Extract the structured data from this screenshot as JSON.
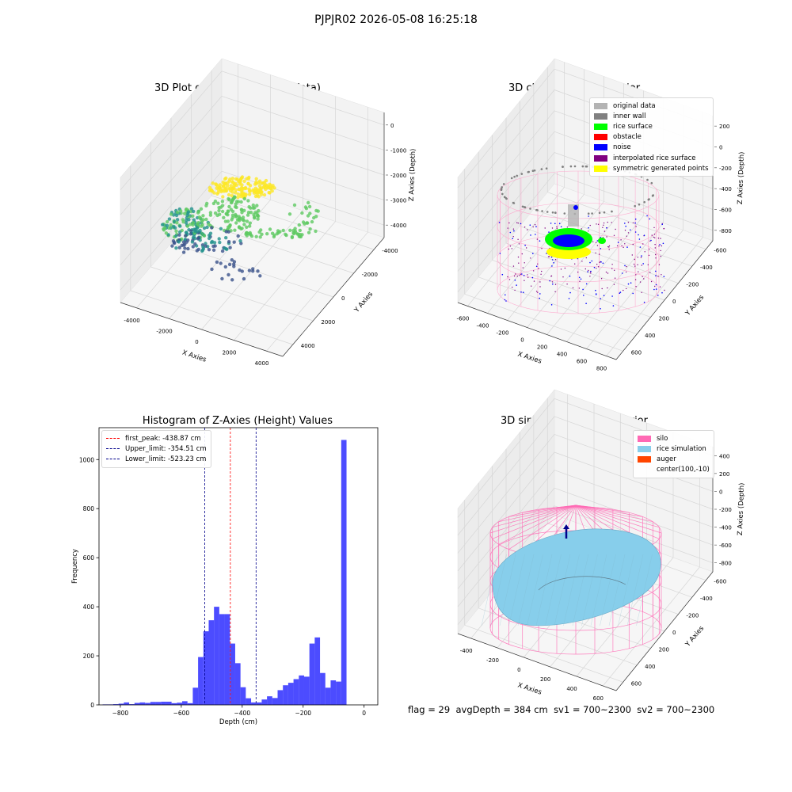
{
  "suptitle": "PJPJR02 2026-05-08 16:25:18",
  "panels": {
    "raw": {
      "title": "3D Plot of Silo Interior(row data)",
      "xlabel": "X Axies",
      "ylabel": "Y Axies",
      "zlabel": "Z Axies (Depth)",
      "xticks": [
        "-4000",
        "-2000",
        "0",
        "2000",
        "4000"
      ],
      "yticks": [
        "-4000",
        "-2000",
        "0",
        "2000",
        "4000"
      ],
      "zticks": [
        "0",
        "-1000",
        "-2000",
        "-3000",
        "-4000"
      ],
      "colormap": [
        "#440154",
        "#3b528b",
        "#21918c",
        "#5ec962",
        "#fde725"
      ]
    },
    "classify": {
      "title": "3D classify of Silo Interior",
      "xlabel": "X Axies",
      "ylabel": "Y Axies",
      "zlabel": "Z Axies (Depth)",
      "xticks": [
        "-600",
        "-400",
        "-200",
        "0",
        "200",
        "400",
        "600",
        "800"
      ],
      "yticks": [
        "-600",
        "-400",
        "-200",
        "0",
        "200",
        "400",
        "600"
      ],
      "zticks": [
        "200",
        "0",
        "-200",
        "-400",
        "-600",
        "-800"
      ],
      "legend": [
        {
          "label": "original data",
          "color": "#b3b3b3"
        },
        {
          "label": "inner wall",
          "color": "#808080"
        },
        {
          "label": "rice surface",
          "color": "#00ff00"
        },
        {
          "label": "obstacle",
          "color": "#ff0000"
        },
        {
          "label": "noise",
          "color": "#0000ff"
        },
        {
          "label": "interpolated rice surface",
          "color": "#800080"
        },
        {
          "label": "symmetric generated points",
          "color": "#ffff00"
        }
      ]
    },
    "simulation": {
      "title": "3D simulation of Silo Interior",
      "xlabel": "X Axies",
      "ylabel": "Y Axies",
      "zlabel": "Z Axies (Depth)",
      "xticks": [
        "-400",
        "-200",
        "0",
        "200",
        "400",
        "600"
      ],
      "yticks": [
        "-600",
        "-400",
        "-200",
        "0",
        "200",
        "400",
        "600"
      ],
      "zticks": [
        "400",
        "200",
        "0",
        "-200",
        "-400",
        "-600",
        "-800"
      ],
      "legend": [
        {
          "label": "silo",
          "color": "#ff69b4"
        },
        {
          "label": "rice simulation",
          "color": "#87ceeb"
        },
        {
          "label": "auger",
          "color": "#ff4500"
        },
        {
          "label": "center(100,-10)",
          "color": ""
        }
      ]
    }
  },
  "chart_data": {
    "type": "bar",
    "title": "Histogram of Z-Axies (Height) Values",
    "xlabel": "Depth (cm)",
    "ylabel": "Frequency",
    "xlim": [
      -870,
      45
    ],
    "ylim": [
      0,
      1130
    ],
    "xticks": [
      -800,
      -600,
      -400,
      -200,
      0
    ],
    "yticks": [
      0,
      200,
      400,
      600,
      800,
      1000
    ],
    "bar_color": "#0000ff",
    "bin_start": -858,
    "bin_width": 17.4,
    "values": [
      2,
      2,
      3,
      5,
      10,
      3,
      8,
      10,
      8,
      12,
      12,
      13,
      13,
      7,
      9,
      15,
      7,
      70,
      195,
      300,
      345,
      400,
      370,
      370,
      250,
      170,
      72,
      27,
      10,
      10,
      22,
      35,
      28,
      60,
      80,
      90,
      105,
      120,
      115,
      250,
      275,
      130,
      70,
      100,
      95,
      1080
    ],
    "vlines": [
      {
        "label": "first_peak: -438.87 cm",
        "x": -438.87,
        "color": "#ff0000"
      },
      {
        "label": "Upper_limit: -354.51 cm",
        "x": -354.51,
        "color": "#00008b"
      },
      {
        "label": "Lower_limit: -523.23 cm",
        "x": -523.23,
        "color": "#00008b"
      }
    ]
  },
  "footer": {
    "flag": "flag = 29",
    "avg_depth": "avgDepth = 384 cm",
    "sv1": "sv1 = 700~2300",
    "sv2": "sv2 = 700~2300"
  }
}
